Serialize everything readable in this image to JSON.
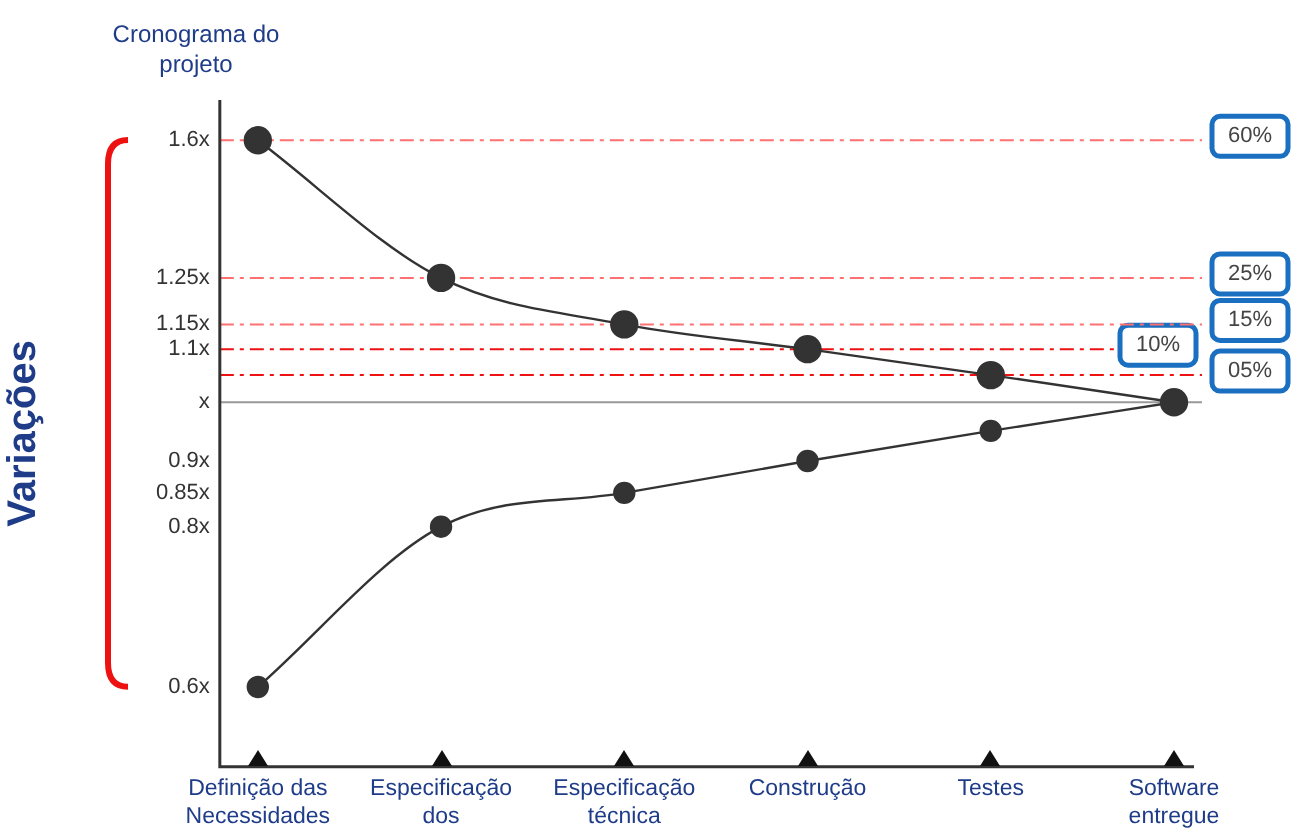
{
  "chart_data": {
    "type": "line",
    "title": "Cronograma do projeto",
    "ylabel": "Variações",
    "categories": [
      "Definição das Necessidades",
      "Especificação dos",
      "Especificação técnica",
      "Construção",
      "Testes",
      "Software entregue"
    ],
    "series": [
      {
        "color": "#333333",
        "values": [
          1.6,
          1.25,
          1.15,
          1.1,
          1.05,
          1.0
        ]
      },
      {
        "color": "#333333",
        "values": [
          0.6,
          0.8,
          0.85,
          0.9,
          0.95,
          1.0
        ]
      }
    ],
    "log": "y",
    "ylim": [
      0.52,
      1.72
    ],
    "yticks": [
      {
        "value": 0.6,
        "label": "0.6x"
      },
      {
        "value": 0.8,
        "label": "0.8x"
      },
      {
        "value": 0.85,
        "label": "0.85x"
      },
      {
        "value": 0.9,
        "label": "0.9x"
      },
      {
        "value": 1,
        "label": "x"
      },
      {
        "value": 1.1,
        "label": "1.1x"
      },
      {
        "value": 1.15,
        "label": "1.15x"
      },
      {
        "value": 1.25,
        "label": "1.25x"
      },
      {
        "value": 1.6,
        "label": "1.6x"
      }
    ],
    "ref_lines": [
      {
        "axis": "y",
        "value": 1.6,
        "color": "#ff7070",
        "line_style": "dashed"
      },
      {
        "axis": "y",
        "value": 1.25,
        "color": "#ff7070",
        "line_style": "dashed"
      },
      {
        "axis": "y",
        "value": 1.15,
        "color": "#ff7070",
        "line_style": "dashed"
      },
      {
        "axis": "y",
        "value": 1.1,
        "color": "#ee1111",
        "line_style": "dashed"
      },
      {
        "axis": "y",
        "value": 1.05,
        "color": "#ee1111",
        "line_style": "dashed"
      },
      {
        "axis": "y",
        "value": 1,
        "color": "#999999",
        "line_style": "solid"
      }
    ],
    "annotations": [
      "60%",
      "25%",
      "15%",
      "10%",
      "05%"
    ],
    "marker": "circle",
    "grid": false,
    "legend": false
  }
}
